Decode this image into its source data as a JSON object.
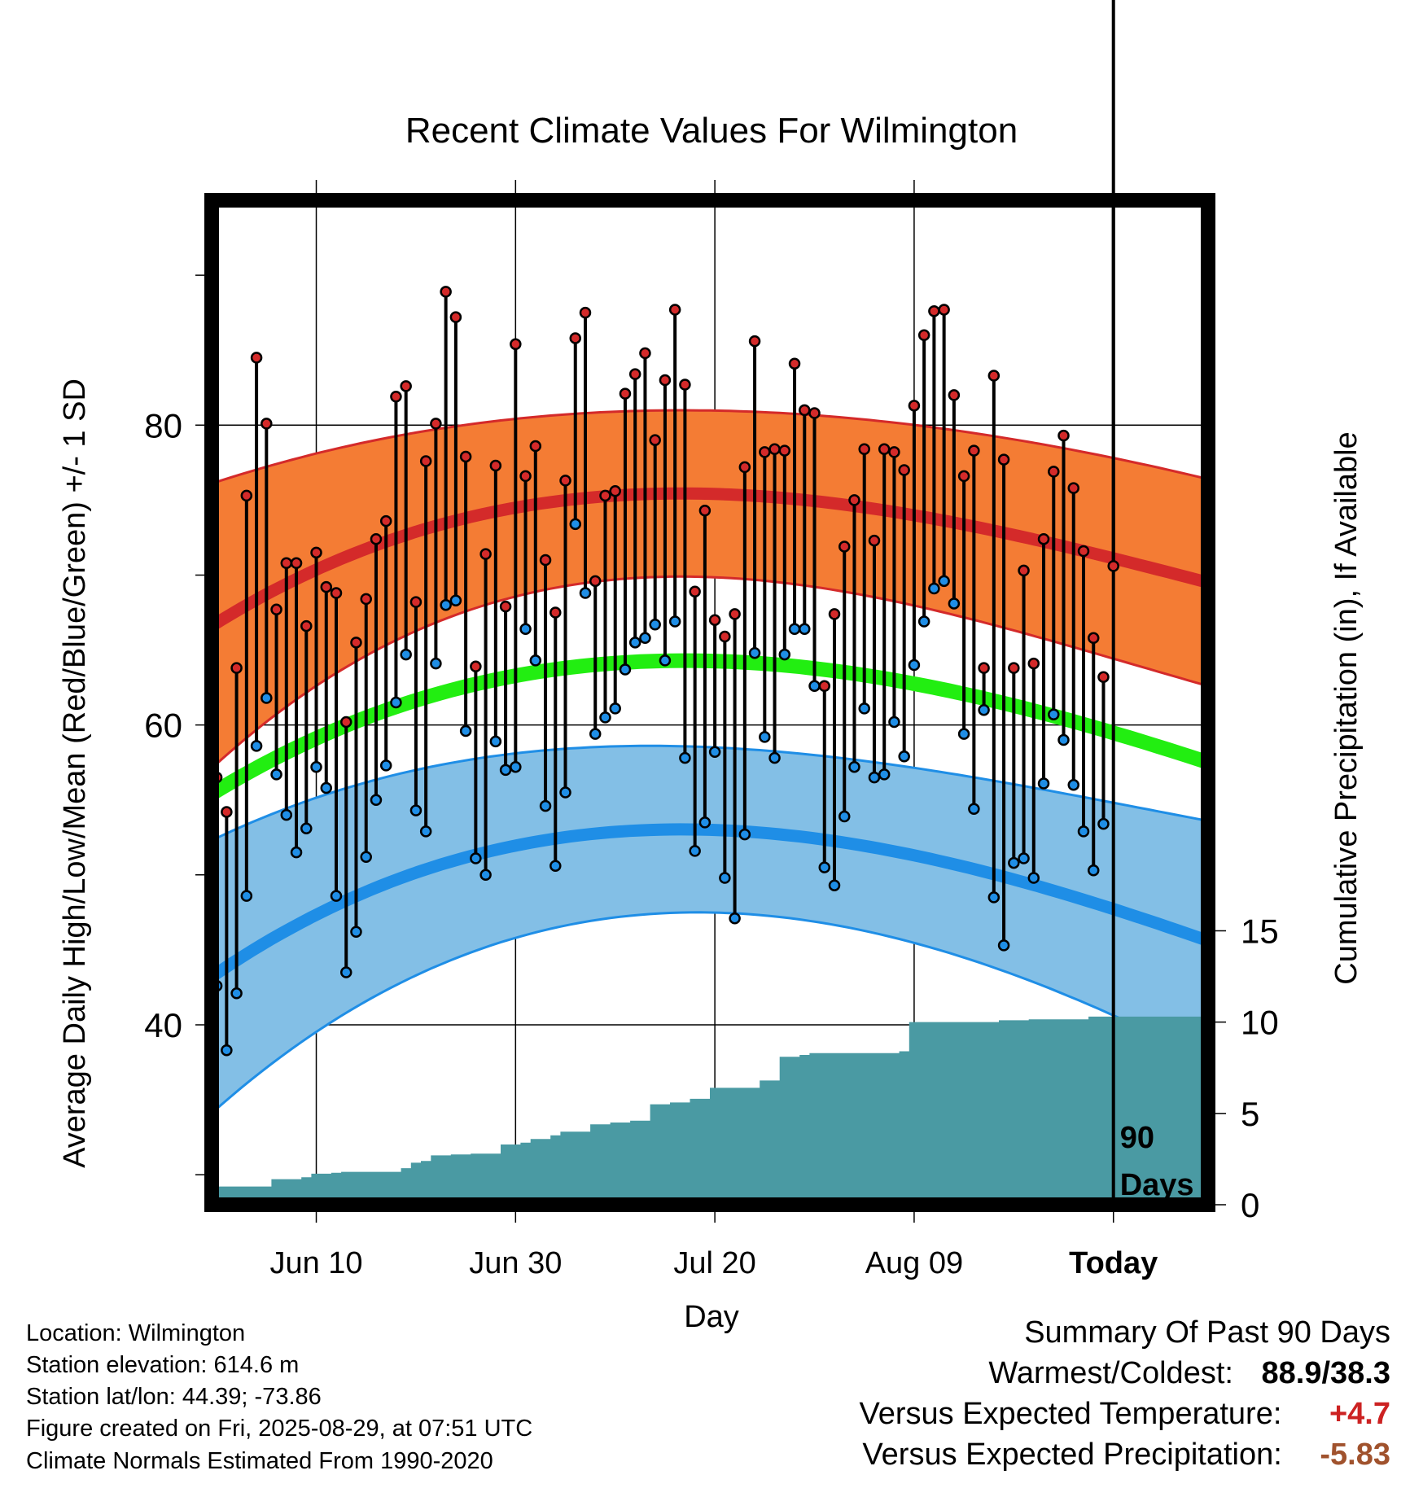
{
  "chart_data": {
    "type": "line",
    "title": "Recent Climate Values For Wilmington",
    "xlabel": "Day",
    "ylabel": "Average Daily High/Low/Mean (Red/Blue/Green) +/- 1 SD",
    "y2label": "Cumulative Precipitation (in), If Available",
    "x_tick_labels": [
      "Jun 10",
      "Jun 30",
      "Jul 20",
      "Aug 09",
      "Today"
    ],
    "x_tick_days": [
      10,
      30,
      50,
      70,
      90
    ],
    "xlim": [
      -0.5,
      99.5
    ],
    "ylim": [
      28,
      95
    ],
    "y_ticks": [
      40,
      60,
      80
    ],
    "y2lim": [
      0,
      55
    ],
    "y2_ticks": [
      0,
      5,
      10,
      15
    ],
    "today_label": "90\nDays",
    "today_day": 90,
    "normals": {
      "high_mean": [
        66.6,
        74.8,
        74.4,
        69.5
      ],
      "high_sd": [
        9.5,
        5.8,
        5.9,
        6.9
      ],
      "low_mean": [
        43.2,
        52.3,
        51.8,
        45.6
      ],
      "low_sd": [
        9.1,
        6.0,
        5.7,
        8.0
      ],
      "mean": [
        55.4,
        63.6,
        63.2,
        57.5
      ]
    },
    "series": [
      {
        "name": "High",
        "color": "#d42a2a",
        "values": [
          56.5,
          54.2,
          63.8,
          75.3,
          84.5,
          80.1,
          67.7,
          70.8,
          70.8,
          66.6,
          71.5,
          69.2,
          68.8,
          60.2,
          65.5,
          68.4,
          72.4,
          73.6,
          81.9,
          82.6,
          68.2,
          77.6,
          80.1,
          88.9,
          87.2,
          77.9,
          63.9,
          71.4,
          77.3,
          67.9,
          85.4,
          76.6,
          78.6,
          71.0,
          67.5,
          76.3,
          85.8,
          87.5,
          69.6,
          75.3,
          75.6,
          82.1,
          83.4,
          84.8,
          79.0,
          83.0,
          87.7,
          82.7,
          68.9,
          74.3,
          67.0,
          65.9,
          67.4,
          77.2,
          85.6,
          78.2,
          78.4,
          78.3,
          84.1,
          81.0,
          80.8,
          62.6,
          67.4,
          71.9,
          75.0,
          78.4,
          72.3,
          78.4,
          78.2,
          77.0,
          81.3,
          86.0,
          87.6,
          87.7,
          82.0,
          76.6,
          78.3,
          63.8,
          83.3,
          77.7,
          63.8,
          70.3,
          64.1,
          72.4,
          76.9,
          79.3,
          75.8,
          71.6,
          65.8,
          63.2,
          70.6
        ]
      },
      {
        "name": "Low",
        "color": "#1f8ee6",
        "values": [
          42.6,
          38.3,
          42.1,
          48.6,
          58.6,
          61.8,
          56.7,
          54.0,
          51.5,
          53.1,
          57.2,
          55.8,
          48.6,
          43.5,
          46.2,
          51.2,
          55.0,
          57.3,
          61.5,
          64.7,
          54.3,
          52.9,
          64.1,
          68.0,
          68.3,
          59.6,
          51.1,
          50.0,
          58.9,
          57.0,
          57.2,
          66.4,
          64.3,
          54.6,
          50.6,
          55.5,
          73.4,
          68.8,
          59.4,
          60.5,
          61.1,
          63.7,
          65.5,
          65.8,
          66.7,
          64.3,
          66.9,
          57.8,
          51.6,
          53.5,
          58.2,
          49.8,
          47.1,
          52.7,
          64.8,
          59.2,
          57.8,
          64.7,
          66.4,
          66.4,
          62.6,
          50.5,
          49.3,
          53.9,
          57.2,
          61.1,
          56.5,
          56.7,
          60.2,
          57.9,
          64.0,
          66.9,
          69.1,
          69.6,
          68.1,
          59.4,
          54.4,
          61.0,
          48.5,
          45.3,
          50.8,
          51.1,
          49.8,
          56.1,
          60.7,
          59.0,
          56.0,
          52.9,
          50.3,
          53.4
        ]
      }
    ],
    "precip_cumulative_in": [
      1.0,
      1.0,
      1.0,
      1.0,
      1.0,
      1.0,
      1.4,
      1.4,
      1.4,
      1.5,
      1.7,
      1.7,
      1.75,
      1.8,
      1.8,
      1.8,
      1.8,
      1.8,
      1.8,
      2.0,
      2.3,
      2.4,
      2.7,
      2.7,
      2.75,
      2.75,
      2.8,
      2.8,
      2.8,
      3.3,
      3.3,
      3.4,
      3.6,
      3.6,
      3.8,
      4.0,
      4.0,
      4.0,
      4.4,
      4.4,
      4.5,
      4.5,
      4.6,
      4.6,
      5.5,
      5.5,
      5.6,
      5.6,
      5.8,
      5.8,
      6.4,
      6.4,
      6.4,
      6.4,
      6.4,
      6.8,
      6.8,
      8.1,
      8.1,
      8.2,
      8.3,
      8.3,
      8.3,
      8.3,
      8.3,
      8.3,
      8.3,
      8.3,
      8.3,
      8.4,
      10.0,
      10.0,
      10.0,
      10.0,
      10.0,
      10.0,
      10.0,
      10.0,
      10.0,
      10.1,
      10.1,
      10.1,
      10.15,
      10.15,
      10.15,
      10.15,
      10.15,
      10.15,
      10.3,
      10.3,
      10.3,
      10.3,
      10.3,
      10.3,
      10.3,
      10.3,
      10.3,
      10.3,
      10.3,
      10.3
    ]
  },
  "info": {
    "location": "Location: Wilmington",
    "elevation": "Station elevation: 614.6 m",
    "latlon": "Station lat/lon: 44.39; -73.86",
    "created": "Figure created on Fri, 2025-08-29, at 07:51 UTC",
    "normals": "Climate Normals Estimated From 1990-2020"
  },
  "summary": {
    "heading": "Summary Of Past 90 Days",
    "warm_label": "Warmest/Coldest:",
    "warm_value": "88.9/38.3",
    "temp_label": "Versus Expected Temperature:",
    "temp_value": "+4.7",
    "precip_label": "Versus Expected Precipitation:",
    "precip_value": "-5.83",
    "temp_color": "#cc2222",
    "precip_color": "#a0522d"
  }
}
